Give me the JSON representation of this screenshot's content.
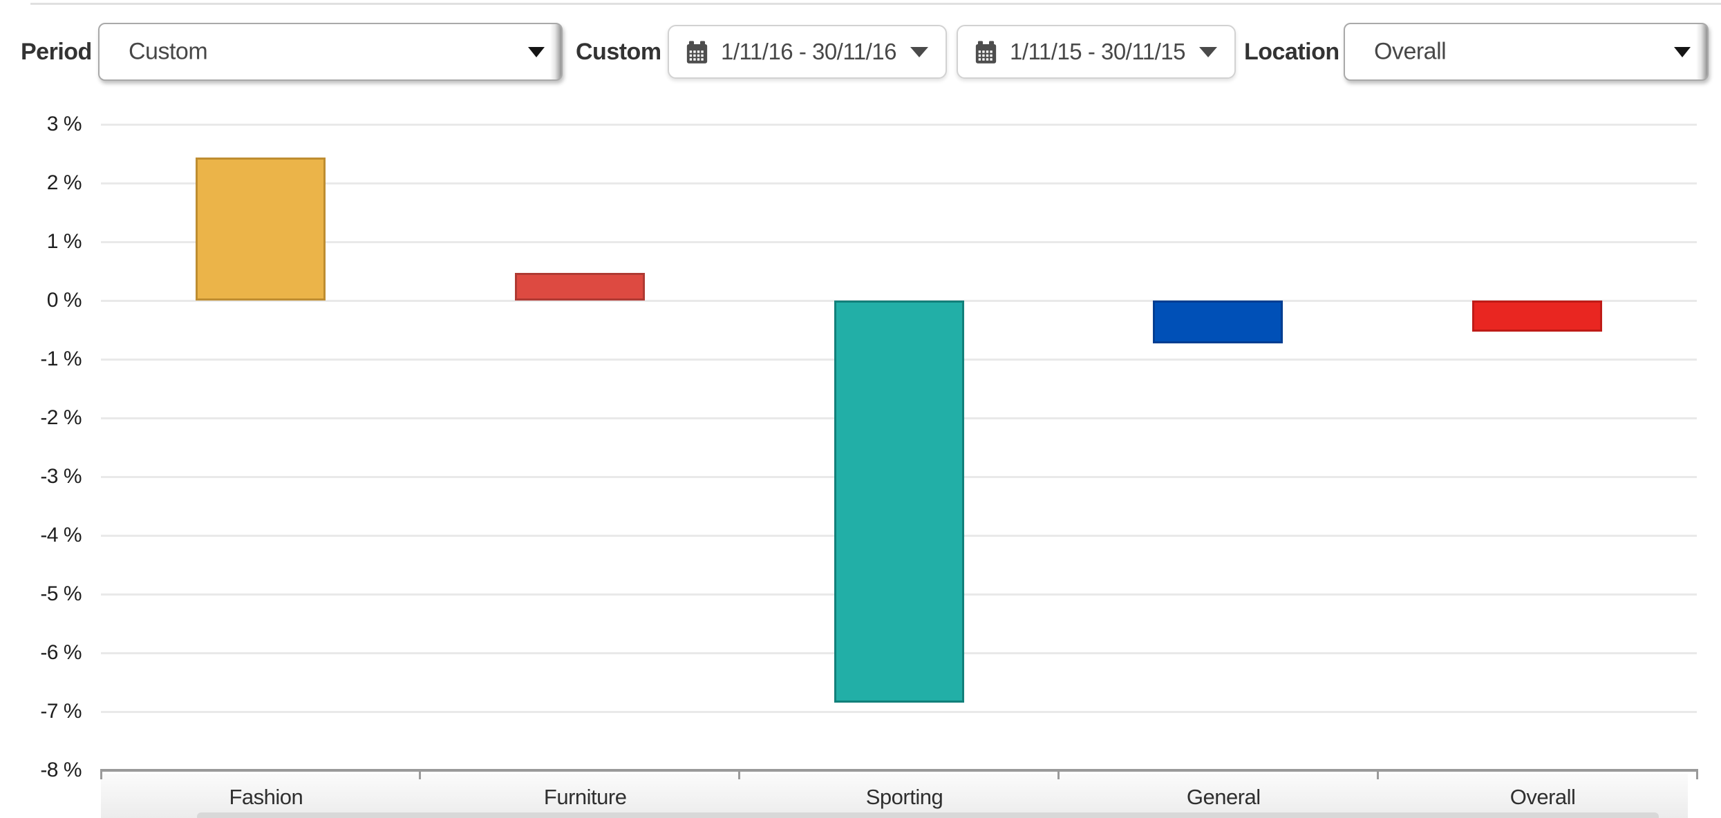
{
  "header": {
    "period_label": "Period",
    "period_value": "Custom",
    "custom_label": "Custom",
    "date_range_primary": "1/11/16 - 30/11/16",
    "date_range_comparison": "1/11/15 - 30/11/15",
    "location_label": "Location",
    "location_value": "Overall"
  },
  "chart_data": {
    "type": "bar",
    "categories": [
      "Fashion",
      "Furniture",
      "Sporting",
      "General",
      "Overall"
    ],
    "values": [
      2.43,
      0.47,
      -6.85,
      -0.73,
      -0.53
    ],
    "unit": "%",
    "bar_colors": [
      "#EBB449",
      "#DD4A41",
      "#22AFA7",
      "#0050B7",
      "#E92621"
    ],
    "bar_border_colors": [
      "#BE8D31",
      "#AF3A33",
      "#12807A",
      "#013E92",
      "#BF1B17"
    ],
    "yticks": [
      3,
      2,
      1,
      0,
      -1,
      -2,
      -3,
      -4,
      -5,
      -6,
      -7,
      -8
    ],
    "ytick_suffix": " %",
    "ylim": [
      -8,
      3
    ],
    "grid": "horizontal",
    "legend": "none",
    "title": ""
  }
}
